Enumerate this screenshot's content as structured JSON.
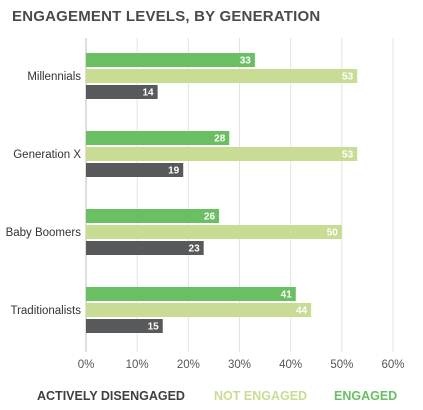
{
  "chart_data": {
    "type": "bar",
    "orientation": "horizontal",
    "title": "ENGAGEMENT LEVELS, BY GENERATION",
    "categories": [
      "Millennials",
      "Generation X",
      "Baby Boomers",
      "Traditionalists"
    ],
    "series": [
      {
        "name": "ENGAGED",
        "color": "#6abf63",
        "values": [
          33,
          28,
          26,
          41
        ]
      },
      {
        "name": "NOT ENGAGED",
        "color": "#c8dd93",
        "values": [
          53,
          53,
          50,
          44
        ]
      },
      {
        "name": "ACTIVELY DISENGAGED",
        "color": "#58595b",
        "values": [
          14,
          19,
          23,
          15
        ]
      }
    ],
    "x_ticks": [
      "0%",
      "10%",
      "20%",
      "30%",
      "40%",
      "50%",
      "60%"
    ],
    "xlim": [
      0,
      60
    ],
    "grid": true,
    "legend_position": "bottom"
  }
}
